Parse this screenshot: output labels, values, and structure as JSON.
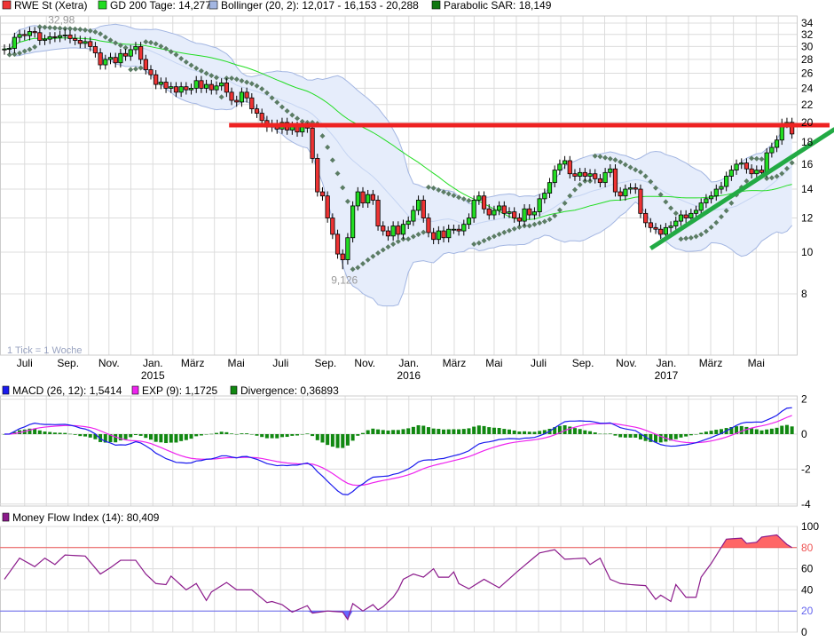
{
  "legend_main": {
    "stock": "RWE St (Xetra)",
    "gd200": "GD 200 Tage: 14,277",
    "bollinger": "Bollinger (20, 2): 12,017 - 16,153 - 20,288",
    "sar": "Parabolic SAR: 18,149"
  },
  "legend_macd": {
    "macd": "MACD (26, 12): 1,5414",
    "exp": "EXP (9): 1,1725",
    "div": "Divergence: 0,36893"
  },
  "legend_mfi": "Money Flow Index (14): 80,409",
  "tick_note": "1 Tick = 1 Woche",
  "colors": {
    "up": "#22dd22",
    "down": "#ee3333",
    "gd200": "#22dd22",
    "boll_fill": "#e6edfb",
    "boll_line": "#a3b6e2",
    "sar": "#5b7c64",
    "resistance": "#ee2222",
    "trend": "#22aa44",
    "macd": "#1a1aee",
    "exp": "#ee22ee",
    "div": "#118811",
    "mfi": "#8b1a8b",
    "mfi_hi": "#ff6666",
    "mfi_lo": "#6666ff"
  },
  "chart_data": [
    {
      "type": "candlestick",
      "title": "RWE St (Xetra)",
      "scale": "log",
      "ylim": [
        7.4,
        34.5
      ],
      "yticks": [
        8,
        10,
        12,
        14,
        16,
        18,
        20,
        22,
        24,
        26,
        28,
        30,
        32,
        34
      ],
      "x_ticks": [
        {
          "week": 4.0,
          "label": "Juli"
        },
        {
          "week": 12.6,
          "label": "Sep."
        },
        {
          "week": 20.7,
          "label": "Nov."
        },
        {
          "week": 29.4,
          "label": "Jan.",
          "year": "2015"
        },
        {
          "week": 37.3,
          "label": "März"
        },
        {
          "week": 45.9,
          "label": "Mai"
        },
        {
          "week": 54.7,
          "label": "Juli"
        },
        {
          "week": 63.6,
          "label": "Sep."
        },
        {
          "week": 71.4,
          "label": "Nov."
        },
        {
          "week": 80.1,
          "label": "Jan.",
          "year": "2016"
        },
        {
          "week": 89.1,
          "label": "März"
        },
        {
          "week": 97.0,
          "label": "Mai"
        },
        {
          "week": 105.8,
          "label": "Juli"
        },
        {
          "week": 114.6,
          "label": "Sep."
        },
        {
          "week": 123.2,
          "label": "Nov."
        },
        {
          "week": 131.1,
          "label": "Jan.",
          "year": "2017"
        },
        {
          "week": 139.9,
          "label": "März"
        },
        {
          "week": 148.9,
          "label": "Mai"
        }
      ],
      "closes": [
        29.6,
        29.7,
        31.5,
        32.0,
        31.8,
        32.5,
        32.3,
        31.0,
        31.2,
        31.6,
        31.5,
        31.8,
        31.9,
        31.3,
        31.0,
        30.5,
        30.8,
        30.0,
        29.0,
        27.2,
        28.0,
        28.3,
        27.5,
        28.9,
        28.5,
        29.5,
        30.0,
        28.0,
        26.5,
        25.8,
        24.5,
        24.8,
        24.0,
        24.2,
        23.5,
        24.2,
        23.8,
        24.0,
        25.0,
        24.0,
        24.5,
        23.8,
        24.3,
        24.7,
        23.5,
        22.5,
        22.3,
        23.5,
        22.8,
        21.5,
        21.0,
        20.2,
        19.5,
        19.8,
        19.3,
        20.0,
        19.2,
        19.6,
        19.0,
        19.5,
        19.4,
        16.5,
        13.8,
        13.5,
        12.0,
        11.0,
        9.9,
        9.6,
        10.8,
        12.8,
        13.8,
        13.0,
        13.6,
        13.2,
        11.5,
        11.2,
        10.9,
        11.5,
        11.0,
        11.6,
        11.8,
        12.5,
        13.2,
        12.0,
        11.1,
        10.7,
        11.2,
        10.8,
        11.3,
        11.3,
        11.2,
        11.6,
        12.0,
        13.2,
        13.5,
        12.6,
        12.2,
        12.5,
        12.8,
        12.3,
        12.4,
        12.0,
        11.8,
        12.6,
        12.2,
        12.4,
        13.3,
        13.7,
        14.5,
        15.5,
        16.0,
        16.3,
        15.2,
        15.0,
        15.3,
        15.0,
        15.2,
        14.8,
        14.5,
        15.3,
        15.6,
        13.8,
        13.5,
        14.0,
        14.1,
        14.0,
        12.3,
        11.7,
        11.4,
        11.3,
        11.0,
        11.4,
        11.5,
        11.8,
        12.2,
        12.0,
        12.3,
        12.5,
        13.0,
        13.3,
        13.5,
        14.0,
        14.2,
        15.0,
        15.5,
        16.0,
        16.1,
        15.6,
        15.2,
        15.5,
        15.3,
        17.0,
        17.5,
        18.2,
        19.9,
        20.0,
        18.8
      ],
      "annotations": [
        {
          "label": "32,98",
          "week": 12,
          "value": 32.98
        },
        {
          "label": "9,126",
          "week": 67,
          "value": 9.126
        }
      ],
      "resistance": {
        "value": 19.7,
        "from_week": 44.5
      },
      "trendline": {
        "from": [
          128,
          10.2
        ],
        "to": [
          164.5,
          19.3
        ]
      }
    },
    {
      "type": "line",
      "title": "MACD",
      "ylim": [
        -4.2,
        2.2
      ],
      "yticks": [
        2,
        0,
        -2,
        -4
      ]
    },
    {
      "type": "area",
      "title": "Money Flow Index (14)",
      "ylim": [
        0,
        100
      ],
      "yticks": [
        0,
        20,
        40,
        60,
        80,
        100
      ],
      "levels": [
        20,
        80
      ],
      "keypoints": [
        [
          0,
          50
        ],
        [
          3,
          70
        ],
        [
          6,
          62
        ],
        [
          8,
          70
        ],
        [
          10,
          64
        ],
        [
          12,
          73
        ],
        [
          16,
          72
        ],
        [
          19,
          55
        ],
        [
          21,
          61
        ],
        [
          23,
          68
        ],
        [
          26,
          68
        ],
        [
          28,
          55
        ],
        [
          30,
          46
        ],
        [
          32,
          45
        ],
        [
          33,
          53
        ],
        [
          36,
          40
        ],
        [
          38,
          46
        ],
        [
          40,
          30
        ],
        [
          41,
          38
        ],
        [
          44,
          47
        ],
        [
          46,
          40
        ],
        [
          49,
          40
        ],
        [
          52,
          28
        ],
        [
          53,
          29
        ],
        [
          55,
          26
        ],
        [
          57,
          19
        ],
        [
          60,
          25
        ],
        [
          61,
          18
        ],
        [
          64,
          20
        ],
        [
          67,
          19
        ],
        [
          68,
          12
        ],
        [
          69,
          27
        ],
        [
          71,
          20
        ],
        [
          73,
          26
        ],
        [
          74,
          21
        ],
        [
          75,
          24
        ],
        [
          77,
          33
        ],
        [
          78,
          40
        ],
        [
          79,
          50
        ],
        [
          81,
          55
        ],
        [
          83,
          52
        ],
        [
          85,
          60
        ],
        [
          86,
          52
        ],
        [
          88,
          52
        ],
        [
          89,
          57
        ],
        [
          90,
          46
        ],
        [
          92,
          41
        ],
        [
          95,
          50
        ],
        [
          98,
          42
        ],
        [
          102,
          59
        ],
        [
          106,
          75
        ],
        [
          109,
          78
        ],
        [
          111,
          69
        ],
        [
          115,
          70
        ],
        [
          116,
          64
        ],
        [
          118,
          70
        ],
        [
          120,
          50
        ],
        [
          122,
          46
        ],
        [
          124,
          45
        ],
        [
          127,
          44
        ],
        [
          129,
          31
        ],
        [
          130,
          35
        ],
        [
          132,
          29
        ],
        [
          133,
          45
        ],
        [
          135,
          33
        ],
        [
          137,
          33
        ],
        [
          138,
          52
        ],
        [
          140,
          65
        ],
        [
          143,
          88
        ],
        [
          146,
          89
        ],
        [
          147,
          84
        ],
        [
          149,
          85
        ],
        [
          150,
          90
        ],
        [
          153,
          92
        ],
        [
          155,
          83
        ],
        [
          156,
          80
        ]
      ]
    }
  ]
}
